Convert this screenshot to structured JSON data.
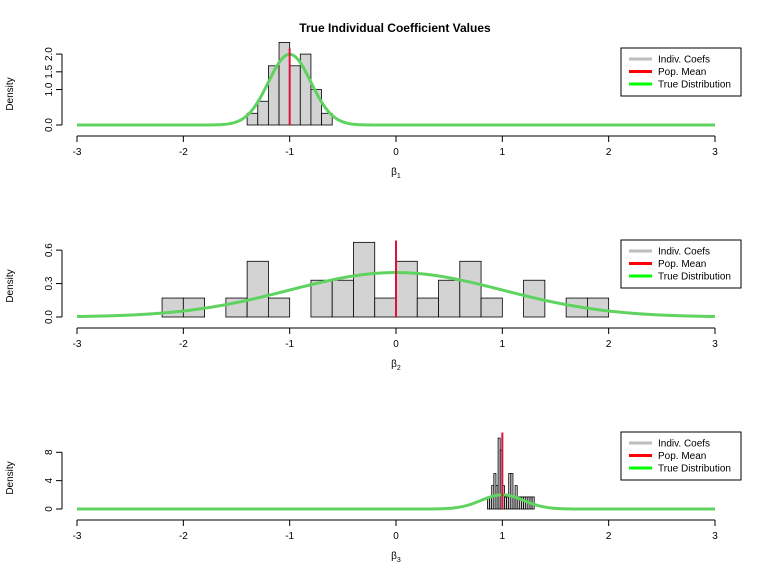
{
  "title": "True Individual Coefficient Values",
  "legend": {
    "entries": [
      {
        "label": "Indiv. Coefs",
        "color": "#bebebe"
      },
      {
        "label": "Pop. Mean",
        "color": "#ff0000"
      },
      {
        "label": "True Distribution",
        "color": "#00ff00"
      }
    ]
  },
  "chart_data": [
    {
      "type": "histogram",
      "xlabel": "β1",
      "ylabel": "Density",
      "xlim": [
        -3,
        3
      ],
      "ylim": [
        0,
        2.2
      ],
      "x_ticks": [
        "-3",
        "-2",
        "-1",
        "0",
        "1",
        "2",
        "3"
      ],
      "y_ticks": [
        {
          "value": 0,
          "label": "0.0"
        },
        {
          "value": 1,
          "label": "1.0"
        },
        {
          "value": 1.5,
          "label": "1.5"
        },
        {
          "value": 2,
          "label": "2.0"
        }
      ],
      "bins": [
        {
          "x0": -1.4,
          "x1": -1.3,
          "density": 0.33
        },
        {
          "x0": -1.3,
          "x1": -1.2,
          "density": 0.67
        },
        {
          "x0": -1.2,
          "x1": -1.1,
          "density": 1.67
        },
        {
          "x0": -1.1,
          "x1": -1.0,
          "density": 2.33
        },
        {
          "x0": -1.0,
          "x1": -0.9,
          "density": 1.67
        },
        {
          "x0": -0.9,
          "x1": -0.8,
          "density": 2.0
        },
        {
          "x0": -0.8,
          "x1": -0.7,
          "density": 1.0
        },
        {
          "x0": -0.7,
          "x1": -0.6,
          "density": 0.33
        }
      ],
      "pop_mean": -1.0,
      "true_distribution": {
        "mean": -1.0,
        "sd": 0.2
      }
    },
    {
      "type": "histogram",
      "xlabel": "β2",
      "ylabel": "Density",
      "xlim": [
        -3,
        3
      ],
      "ylim": [
        0,
        0.7
      ],
      "x_ticks": [
        "-3",
        "-2",
        "-1",
        "0",
        "1",
        "2",
        "3"
      ],
      "y_ticks": [
        {
          "value": 0,
          "label": "0.0"
        },
        {
          "value": 0.3,
          "label": "0.3"
        },
        {
          "value": 0.6,
          "label": "0.6"
        }
      ],
      "bins": [
        {
          "x0": -2.2,
          "x1": -2.0,
          "density": 0.17
        },
        {
          "x0": -2.0,
          "x1": -1.8,
          "density": 0.17
        },
        {
          "x0": -1.6,
          "x1": -1.4,
          "density": 0.17
        },
        {
          "x0": -1.4,
          "x1": -1.2,
          "density": 0.5
        },
        {
          "x0": -1.2,
          "x1": -1.0,
          "density": 0.17
        },
        {
          "x0": -0.8,
          "x1": -0.6,
          "density": 0.33
        },
        {
          "x0": -0.6,
          "x1": -0.4,
          "density": 0.33
        },
        {
          "x0": -0.4,
          "x1": -0.2,
          "density": 0.67
        },
        {
          "x0": -0.2,
          "x1": 0.0,
          "density": 0.17
        },
        {
          "x0": 0.0,
          "x1": 0.2,
          "density": 0.5
        },
        {
          "x0": 0.2,
          "x1": 0.4,
          "density": 0.17
        },
        {
          "x0": 0.4,
          "x1": 0.6,
          "density": 0.33
        },
        {
          "x0": 0.6,
          "x1": 0.8,
          "density": 0.5
        },
        {
          "x0": 0.8,
          "x1": 1.0,
          "density": 0.17
        },
        {
          "x0": 1.2,
          "x1": 1.4,
          "density": 0.33
        },
        {
          "x0": 1.6,
          "x1": 1.8,
          "density": 0.17
        },
        {
          "x0": 1.8,
          "x1": 2.0,
          "density": 0.17
        }
      ],
      "pop_mean": 0.0,
      "true_distribution": {
        "mean": 0.0,
        "sd": 1.0
      }
    },
    {
      "type": "histogram",
      "xlabel": "β3",
      "ylabel": "Density",
      "xlim": [
        -3,
        3
      ],
      "ylim": [
        0,
        11
      ],
      "x_ticks": [
        "-3",
        "-2",
        "-1",
        "0",
        "1",
        "2",
        "3"
      ],
      "y_ticks": [
        {
          "value": 0,
          "label": "0"
        },
        {
          "value": 4,
          "label": "4"
        },
        {
          "value": 8,
          "label": "8"
        }
      ],
      "bins": [
        {
          "x0": 0.86,
          "x1": 0.88,
          "density": 1.7
        },
        {
          "x0": 0.88,
          "x1": 0.9,
          "density": 1.7
        },
        {
          "x0": 0.9,
          "x1": 0.92,
          "density": 3.3
        },
        {
          "x0": 0.92,
          "x1": 0.94,
          "density": 5.0
        },
        {
          "x0": 0.94,
          "x1": 0.96,
          "density": 3.3
        },
        {
          "x0": 0.96,
          "x1": 0.98,
          "density": 10.0
        },
        {
          "x0": 0.98,
          "x1": 1.0,
          "density": 8.3
        },
        {
          "x0": 1.0,
          "x1": 1.02,
          "density": 3.3
        },
        {
          "x0": 1.02,
          "x1": 1.04,
          "density": 1.7
        },
        {
          "x0": 1.04,
          "x1": 1.06,
          "density": 1.7
        },
        {
          "x0": 1.06,
          "x1": 1.08,
          "density": 5.0
        },
        {
          "x0": 1.08,
          "x1": 1.1,
          "density": 5.0
        },
        {
          "x0": 1.1,
          "x1": 1.12,
          "density": 1.7
        },
        {
          "x0": 1.12,
          "x1": 1.14,
          "density": 3.3
        },
        {
          "x0": 1.14,
          "x1": 1.16,
          "density": 1.7
        },
        {
          "x0": 1.16,
          "x1": 1.18,
          "density": 1.7
        },
        {
          "x0": 1.18,
          "x1": 1.2,
          "density": 1.7
        },
        {
          "x0": 1.2,
          "x1": 1.22,
          "density": 1.7
        },
        {
          "x0": 1.22,
          "x1": 1.24,
          "density": 1.7
        },
        {
          "x0": 1.24,
          "x1": 1.26,
          "density": 1.7
        },
        {
          "x0": 1.26,
          "x1": 1.28,
          "density": 1.7
        },
        {
          "x0": 1.28,
          "x1": 1.3,
          "density": 1.7
        }
      ],
      "pop_mean": 1.0,
      "true_distribution": {
        "mean": 1.0,
        "sd": 0.2
      }
    }
  ]
}
